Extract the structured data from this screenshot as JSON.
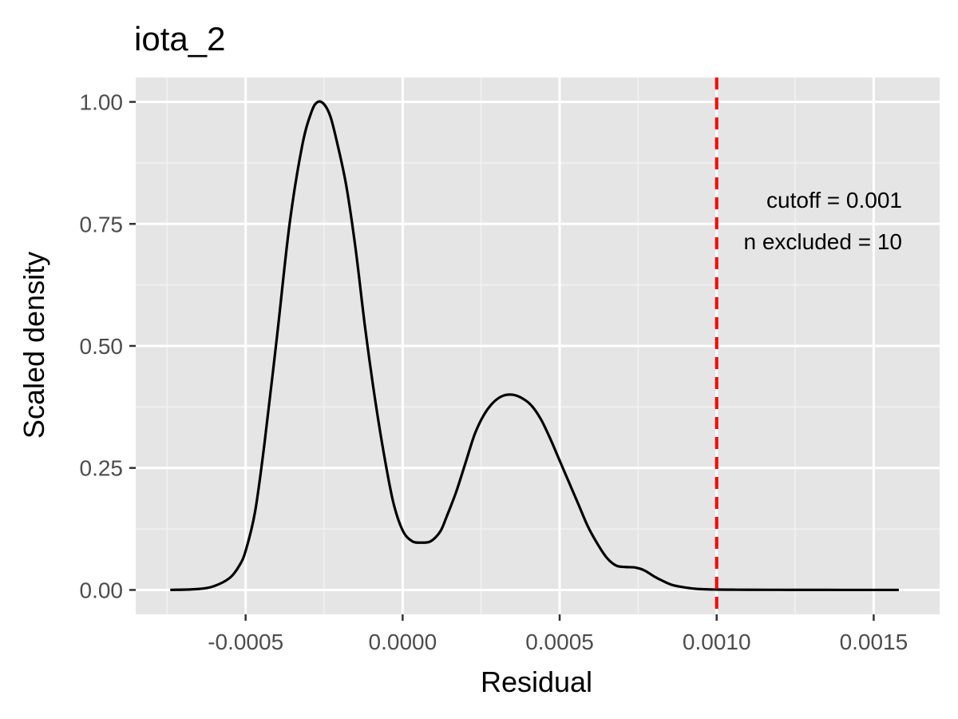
{
  "chart_data": {
    "type": "line",
    "title": "iota_2",
    "xlabel": "Residual",
    "ylabel": "Scaled density",
    "xlim": [
      -0.00085,
      0.00171
    ],
    "ylim": [
      -0.05,
      1.05
    ],
    "x_ticks": [
      -0.0005,
      0.0,
      0.0005,
      0.001,
      0.0015
    ],
    "x_tick_labels": [
      "-0.0005",
      "0.0000",
      "0.0005",
      "0.0010",
      "0.0015"
    ],
    "y_ticks": [
      0.0,
      0.25,
      0.5,
      0.75,
      1.0
    ],
    "y_tick_labels": [
      "0.00",
      "0.25",
      "0.50",
      "0.75",
      "1.00"
    ],
    "grid": true,
    "series": [
      {
        "color": "#000000",
        "x": [
          -0.00074,
          -0.00065,
          -0.0006,
          -0.00055,
          -0.00052,
          -0.0005,
          -0.00047,
          -0.00044,
          -0.0004,
          -0.00036,
          -0.00032,
          -0.00029,
          -0.00027,
          -0.00025,
          -0.00023,
          -0.00021,
          -0.00018,
          -0.00015,
          -0.00012,
          -9e-05,
          -6e-05,
          -3e-05,
          0.0,
          3e-05,
          6e-05,
          9e-05,
          0.00012,
          0.00014,
          0.00017,
          0.0002,
          0.00023,
          0.00026,
          0.00029,
          0.00032,
          0.00035,
          0.00038,
          0.00041,
          0.00044,
          0.00047,
          0.0005,
          0.00053,
          0.00056,
          0.00059,
          0.00062,
          0.00065,
          0.00068,
          0.00071,
          0.00074,
          0.00077,
          0.0008,
          0.00083,
          0.00086,
          0.0009,
          0.00094,
          0.00098,
          0.001,
          0.00105,
          0.0011,
          0.0012,
          0.0013,
          0.0014,
          0.0015,
          0.00158
        ],
        "values": [
          0.0,
          0.002,
          0.008,
          0.025,
          0.05,
          0.08,
          0.16,
          0.3,
          0.52,
          0.75,
          0.91,
          0.98,
          1.0,
          0.995,
          0.97,
          0.92,
          0.83,
          0.7,
          0.54,
          0.4,
          0.28,
          0.18,
          0.122,
          0.1,
          0.097,
          0.1,
          0.12,
          0.15,
          0.2,
          0.26,
          0.32,
          0.36,
          0.385,
          0.398,
          0.4,
          0.393,
          0.378,
          0.35,
          0.31,
          0.265,
          0.22,
          0.175,
          0.13,
          0.095,
          0.066,
          0.05,
          0.047,
          0.046,
          0.04,
          0.028,
          0.018,
          0.01,
          0.005,
          0.002,
          0.001,
          0.0008,
          0.0005,
          0.0003,
          0.0002,
          0.0001,
          5e-05,
          0.0,
          0.0
        ]
      }
    ],
    "cutoff_line": {
      "x": 0.001,
      "color": "#ff0000",
      "style": "dashed"
    },
    "annotations": [
      "cutoff = 0.001",
      "n excluded = 10"
    ]
  }
}
